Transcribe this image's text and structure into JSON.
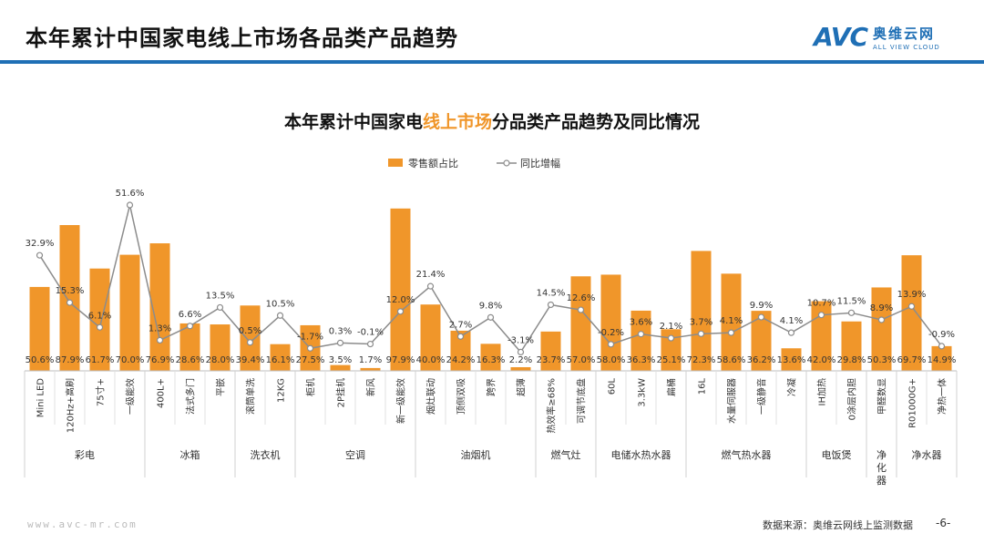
{
  "header": {
    "title": "本年累计中国家电线上市场各品类产品趋势",
    "logo_main": "AVC",
    "logo_cn": "奥维云网",
    "logo_en": "ALL VIEW CLOUD"
  },
  "chart_data": {
    "type": "bar",
    "title_prefix": "本年累计中国家电",
    "title_highlight": "线上市场",
    "title_suffix": "分品类产品趋势及同比情况",
    "legend": [
      "零售额占比",
      "同比增幅"
    ],
    "legend_position": "top-center",
    "bar_color": "#f0962a",
    "line_color": "#8c8c8c",
    "categories": [
      "Mini LED",
      "120Hz+高刷",
      "75寸+",
      "一级能效",
      "400L+",
      "法式多门",
      "平嵌",
      "滚筒单洗",
      "12KG",
      "柜机",
      "2P挂机",
      "新风",
      "新一级能效",
      "烟灶联动",
      "顶侧双吸",
      "跨界",
      "超薄",
      "热效率≥68%",
      "可调节底盘",
      "60L",
      "3.3kW",
      "扁桶",
      "16L",
      "水量伺服器",
      "一级静音",
      "冷凝",
      "IH加热",
      "0涂层内胆",
      "甲醛数显",
      "R01000G+",
      "净热一体"
    ],
    "share_labels": [
      "50.6%",
      "87.9%",
      "61.7%",
      "70.0%",
      "76.9%",
      "28.6%",
      "28.0%",
      "39.4%",
      "16.1%",
      "27.5%",
      "3.5%",
      "1.7%",
      "97.9%",
      "40.0%",
      "24.2%",
      "16.3%",
      "2.2%",
      "23.7%",
      "57.0%",
      "58.0%",
      "36.3%",
      "25.1%",
      "72.3%",
      "58.6%",
      "36.2%",
      "13.6%",
      "42.0%",
      "29.8%",
      "50.3%",
      "69.7%",
      "14.9%"
    ],
    "share_values": [
      50.6,
      87.9,
      61.7,
      70.0,
      76.9,
      28.6,
      28.0,
      39.4,
      16.1,
      27.5,
      3.5,
      1.7,
      97.9,
      40.0,
      24.2,
      16.3,
      2.2,
      23.7,
      57.0,
      58.0,
      36.3,
      25.1,
      72.3,
      58.6,
      36.2,
      13.6,
      42.0,
      29.8,
      50.3,
      69.7,
      14.9
    ],
    "growth_labels": [
      "32.9%",
      "15.3%",
      "6.1%",
      "51.6%",
      "1.3%",
      "6.6%",
      "13.5%",
      "0.5%",
      "10.5%",
      "-1.7%",
      "0.3%",
      "-0.1%",
      "12.0%",
      "21.4%",
      "2.7%",
      "9.8%",
      "-3.1%",
      "14.5%",
      "12.6%",
      "-0.2%",
      "3.6%",
      "2.1%",
      "3.7%",
      "4.1%",
      "9.9%",
      "4.1%",
      "10.7%",
      "11.5%",
      "8.9%",
      "13.9%",
      "-0.9%"
    ],
    "growth_values": [
      32.9,
      15.3,
      6.1,
      51.6,
      1.3,
      6.6,
      13.5,
      0.5,
      10.5,
      -1.7,
      0.3,
      -0.1,
      12.0,
      21.4,
      2.7,
      9.8,
      -3.1,
      14.5,
      12.6,
      -0.2,
      3.6,
      2.1,
      3.7,
      4.1,
      9.9,
      4.1,
      10.7,
      11.5,
      8.9,
      13.9,
      -0.9
    ],
    "groups": [
      {
        "name": "彩电",
        "count": 4
      },
      {
        "name": "冰箱",
        "count": 3
      },
      {
        "name": "洗衣机",
        "count": 2
      },
      {
        "name": "空调",
        "count": 4
      },
      {
        "name": "油烟机",
        "count": 4
      },
      {
        "name": "燃气灶",
        "count": 2
      },
      {
        "name": "电储水热水器",
        "count": 3
      },
      {
        "name": "燃气热水器",
        "count": 4
      },
      {
        "name": "电饭煲",
        "count": 2
      },
      {
        "name": "净化器",
        "count": 1
      },
      {
        "name": "净水器",
        "count": 2
      }
    ],
    "share_ylim": [
      0,
      100
    ],
    "growth_ylim": [
      -5,
      55
    ]
  },
  "footer": {
    "url": "www.avc-mr.com",
    "source": "数据来源：奥维云网线上监测数据",
    "page": "-6-"
  }
}
